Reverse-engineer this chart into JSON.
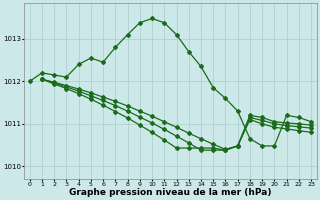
{
  "background_color": "#cce8e8",
  "grid_color": "#aacccc",
  "line_color": "#1a6b1a",
  "marker": "D",
  "marker_size": 2,
  "line_width": 0.9,
  "xlabel": "Graphe pression niveau de la mer (hPa)",
  "xlabel_fontsize": 6.5,
  "tick_fontsize": 5,
  "xlim": [
    -0.5,
    23.5
  ],
  "ylim": [
    1009.7,
    1013.85
  ],
  "yticks": [
    1010,
    1011,
    1012,
    1013
  ],
  "xticks": [
    0,
    1,
    2,
    3,
    4,
    5,
    6,
    7,
    8,
    9,
    10,
    11,
    12,
    13,
    14,
    15,
    16,
    17,
    18,
    19,
    20,
    21,
    22,
    23
  ],
  "series1_y": [
    1012.0,
    1012.2,
    1012.15,
    1012.1,
    1012.4,
    1012.55,
    1012.45,
    1012.8,
    1013.1,
    1013.38,
    1013.48,
    1013.38,
    1013.1,
    1012.7,
    1012.35,
    1011.85,
    1011.6,
    1011.3,
    1010.65,
    1010.48,
    1010.48,
    1011.2,
    1011.15,
    1011.05
  ],
  "series2_start": 1,
  "series2_y": [
    1012.05,
    1011.98,
    1011.9,
    1011.82,
    1011.73,
    1011.63,
    1011.53,
    1011.42,
    1011.3,
    1011.18,
    1011.05,
    1010.92,
    1010.78,
    1010.65,
    1010.52,
    1010.4,
    1010.48,
    1011.2,
    1011.15,
    1011.05,
    1011.02,
    1011.0,
    1010.97
  ],
  "series3_start": 1,
  "series3_y": [
    1012.05,
    1011.96,
    1011.87,
    1011.77,
    1011.66,
    1011.55,
    1011.43,
    1011.3,
    1011.16,
    1011.02,
    1010.87,
    1010.71,
    1010.55,
    1010.38,
    1010.38,
    1010.38,
    1010.48,
    1011.15,
    1011.08,
    1011.0,
    1010.96,
    1010.93,
    1010.9
  ],
  "series4_start": 1,
  "series4_y": [
    1012.05,
    1011.94,
    1011.83,
    1011.71,
    1011.58,
    1011.44,
    1011.29,
    1011.14,
    1010.97,
    1010.8,
    1010.62,
    1010.43,
    1010.43,
    1010.43,
    1010.43,
    1010.38,
    1010.48,
    1011.1,
    1011.0,
    1010.92,
    1010.88,
    1010.84,
    1010.8
  ]
}
